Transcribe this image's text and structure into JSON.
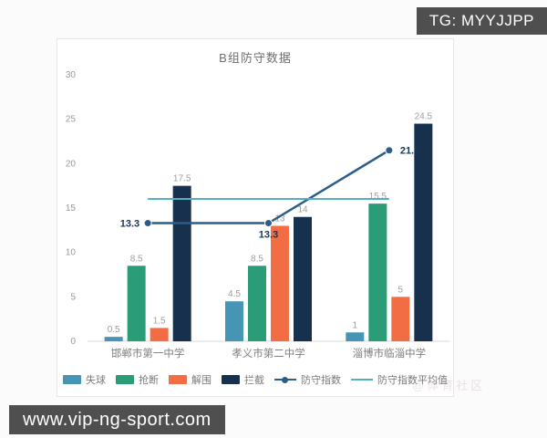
{
  "overlays": {
    "tg_badge": "TG: MYYJJPP",
    "site_badge": "www.vip-ng-sport.com",
    "watermark": "@体育社区"
  },
  "chart_data": {
    "type": "bar",
    "title": "B组防守数据",
    "xlabel": "",
    "ylabel": "",
    "categories": [
      "邯郸市第一中学",
      "孝义市第二中学",
      "淄博市临淄中学"
    ],
    "series": [
      {
        "name": "失球",
        "type": "bar",
        "color": "#4695b5",
        "values": [
          0.5,
          4.5,
          1
        ]
      },
      {
        "name": "抢断",
        "type": "bar",
        "color": "#2a9d78",
        "values": [
          8.5,
          8.5,
          15.5
        ]
      },
      {
        "name": "解围",
        "type": "bar",
        "color": "#f26c44",
        "values": [
          1.5,
          13,
          5
        ]
      },
      {
        "name": "拦截",
        "type": "bar",
        "color": "#16304e",
        "values": [
          17.5,
          14,
          24.5
        ]
      },
      {
        "name": "防守指数",
        "type": "line",
        "color": "#2b5c8a",
        "values": [
          13.3,
          13.3,
          21.5
        ],
        "show_labels": true
      },
      {
        "name": "防守指数平均值",
        "type": "line",
        "color": "#53b0bf",
        "values": [
          16.03,
          16.03,
          16.03
        ],
        "avg": true,
        "show_labels": false
      }
    ],
    "ylim": [
      0,
      30
    ],
    "yticks": [
      0,
      5,
      10,
      15,
      20,
      25,
      30
    ],
    "grid": false,
    "legend_position": "bottom"
  }
}
